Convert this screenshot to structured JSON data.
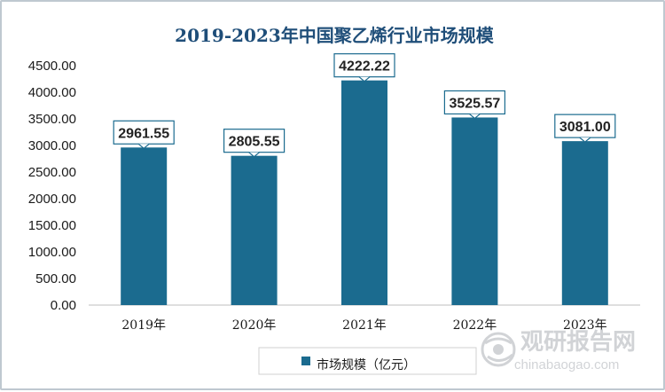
{
  "colors": {
    "bar": "#1b6b8f",
    "title": "#1f4e79",
    "label_border": "#1b6b8f",
    "gridline": "#d9d9d9"
  },
  "chart_data": {
    "type": "bar",
    "title": "2019-2023年中国聚乙烯行业市场规模",
    "categories": [
      "2019年",
      "2020年",
      "2021年",
      "2022年",
      "2023年"
    ],
    "series": [
      {
        "name": "市场规模（亿元）",
        "values": [
          2961.55,
          2805.55,
          4222.22,
          3525.57,
          3081.0
        ]
      }
    ],
    "data_labels": [
      "2961.55",
      "2805.55",
      "4222.22",
      "3525.57",
      "3081.00"
    ],
    "ylim": [
      0,
      4500
    ],
    "y_ticks": [
      "0.00",
      "500.00",
      "1000.00",
      "1500.00",
      "2000.00",
      "2500.00",
      "3000.00",
      "3500.00",
      "4000.00",
      "4500.00"
    ],
    "xlabel": "",
    "ylabel": "",
    "grid": false,
    "legend_position": "bottom"
  },
  "watermark": {
    "brand": "观研报告网",
    "url": "chinabaogao.com",
    "icon": "globe-logo-icon"
  }
}
